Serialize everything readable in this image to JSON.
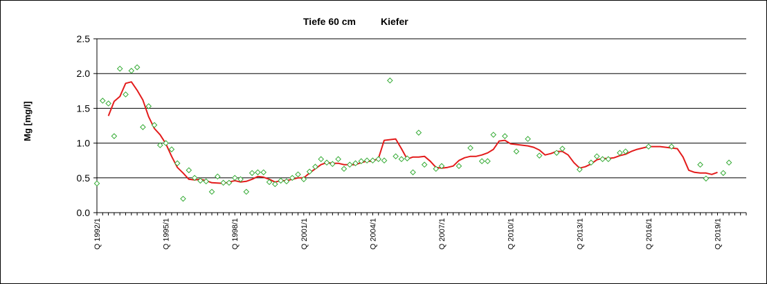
{
  "chart_data": {
    "type": "line",
    "title": "Tiefe  60 cm",
    "subtitle": "Kiefer",
    "ylabel": "Mg [mg/l]",
    "xlabel": "",
    "ylim": [
      0,
      2.5
    ],
    "yticks": [
      "0.0",
      "0.5",
      "1.0",
      "1.5",
      "2.0",
      "2.5"
    ],
    "xlim": [
      1992.0,
      2020.25
    ],
    "xtick_labels": [
      "Q 1992/1",
      "Q 1995/1",
      "Q 1998/1",
      "Q 2001/1",
      "Q 2004/1",
      "Q 2007/1",
      "Q 2010/1",
      "Q 2013/1",
      "Q 2016/1",
      "Q 2019/1"
    ],
    "xtick_values": [
      1992,
      1995,
      1998,
      2001,
      2004,
      2007,
      2010,
      2013,
      2016,
      2019
    ],
    "grid": "horizontal",
    "series": [
      {
        "kind": "scatter",
        "marker": "diamond",
        "color": "#33aa33",
        "points": [
          [
            1992.0,
            0.42
          ],
          [
            1992.25,
            1.61
          ],
          [
            1992.5,
            1.57
          ],
          [
            1992.75,
            1.1
          ],
          [
            1993.0,
            2.07
          ],
          [
            1993.25,
            1.7
          ],
          [
            1993.5,
            2.04
          ],
          [
            1993.75,
            2.09
          ],
          [
            1994.0,
            1.23
          ],
          [
            1994.25,
            1.53
          ],
          [
            1994.5,
            1.26
          ],
          [
            1994.75,
            0.97
          ],
          [
            1995.0,
            1.0
          ],
          [
            1995.25,
            0.91
          ],
          [
            1995.5,
            0.71
          ],
          [
            1995.75,
            0.2
          ],
          [
            1996.0,
            0.61
          ],
          [
            1996.25,
            0.5
          ],
          [
            1996.5,
            0.46
          ],
          [
            1996.75,
            0.45
          ],
          [
            1997.0,
            0.3
          ],
          [
            1997.25,
            0.52
          ],
          [
            1997.5,
            0.43
          ],
          [
            1997.75,
            0.43
          ],
          [
            1998.0,
            0.5
          ],
          [
            1998.25,
            0.48
          ],
          [
            1998.5,
            0.3
          ],
          [
            1998.75,
            0.57
          ],
          [
            1999.0,
            0.58
          ],
          [
            1999.25,
            0.58
          ],
          [
            1999.5,
            0.44
          ],
          [
            1999.75,
            0.41
          ],
          [
            2000.0,
            0.46
          ],
          [
            2000.25,
            0.45
          ],
          [
            2000.5,
            0.5
          ],
          [
            2000.75,
            0.55
          ],
          [
            2001.0,
            0.48
          ],
          [
            2001.25,
            0.59
          ],
          [
            2001.5,
            0.66
          ],
          [
            2001.75,
            0.77
          ],
          [
            2002.0,
            0.72
          ],
          [
            2002.25,
            0.7
          ],
          [
            2002.5,
            0.77
          ],
          [
            2002.75,
            0.63
          ],
          [
            2003.0,
            0.69
          ],
          [
            2003.25,
            0.71
          ],
          [
            2003.5,
            0.74
          ],
          [
            2003.75,
            0.75
          ],
          [
            2004.0,
            0.75
          ],
          [
            2004.25,
            0.77
          ],
          [
            2004.5,
            0.75
          ],
          [
            2004.75,
            1.9
          ],
          [
            2005.0,
            0.81
          ],
          [
            2005.25,
            0.77
          ],
          [
            2005.5,
            0.78
          ],
          [
            2005.75,
            0.58
          ],
          [
            2006.0,
            1.15
          ],
          [
            2006.25,
            0.69
          ],
          [
            2006.75,
            0.63
          ],
          [
            2007.0,
            0.67
          ],
          [
            2007.75,
            0.67
          ],
          [
            2008.25,
            0.93
          ],
          [
            2008.75,
            0.74
          ],
          [
            2009.0,
            0.74
          ],
          [
            2009.25,
            1.12
          ],
          [
            2009.75,
            1.1
          ],
          [
            2010.25,
            0.88
          ],
          [
            2010.75,
            1.06
          ],
          [
            2011.25,
            0.82
          ],
          [
            2012.0,
            0.86
          ],
          [
            2012.25,
            0.92
          ],
          [
            2013.0,
            0.62
          ],
          [
            2013.5,
            0.72
          ],
          [
            2013.75,
            0.81
          ],
          [
            2014.0,
            0.77
          ],
          [
            2014.25,
            0.77
          ],
          [
            2014.75,
            0.86
          ],
          [
            2015.0,
            0.88
          ],
          [
            2016.0,
            0.95
          ],
          [
            2017.0,
            0.95
          ],
          [
            2018.25,
            0.69
          ],
          [
            2018.5,
            0.49
          ],
          [
            2019.25,
            0.57
          ],
          [
            2019.5,
            0.72
          ]
        ]
      },
      {
        "kind": "line",
        "color": "#e31b1b",
        "points": [
          [
            1992.5,
            1.39
          ],
          [
            1992.75,
            1.6
          ],
          [
            1993.0,
            1.67
          ],
          [
            1993.25,
            1.86
          ],
          [
            1993.5,
            1.88
          ],
          [
            1993.75,
            1.76
          ],
          [
            1994.0,
            1.62
          ],
          [
            1994.25,
            1.38
          ],
          [
            1994.5,
            1.21
          ],
          [
            1994.75,
            1.12
          ],
          [
            1995.0,
            0.99
          ],
          [
            1995.25,
            0.81
          ],
          [
            1995.5,
            0.65
          ],
          [
            1995.75,
            0.57
          ],
          [
            1996.0,
            0.48
          ],
          [
            1996.25,
            0.47
          ],
          [
            1996.5,
            0.48
          ],
          [
            1996.75,
            0.46
          ],
          [
            1997.0,
            0.43
          ],
          [
            1997.5,
            0.42
          ],
          [
            1997.75,
            0.44
          ],
          [
            1998.0,
            0.46
          ],
          [
            1998.25,
            0.44
          ],
          [
            1998.5,
            0.45
          ],
          [
            1998.75,
            0.48
          ],
          [
            1999.0,
            0.52
          ],
          [
            1999.25,
            0.51
          ],
          [
            1999.5,
            0.48
          ],
          [
            1999.75,
            0.44
          ],
          [
            2000.0,
            0.46
          ],
          [
            2000.25,
            0.46
          ],
          [
            2000.5,
            0.48
          ],
          [
            2000.75,
            0.5
          ],
          [
            2001.0,
            0.5
          ],
          [
            2001.25,
            0.57
          ],
          [
            2001.5,
            0.63
          ],
          [
            2001.75,
            0.69
          ],
          [
            2002.0,
            0.72
          ],
          [
            2002.25,
            0.71
          ],
          [
            2002.5,
            0.71
          ],
          [
            2002.75,
            0.69
          ],
          [
            2003.25,
            0.69
          ],
          [
            2003.5,
            0.72
          ],
          [
            2003.75,
            0.74
          ],
          [
            2004.0,
            0.74
          ],
          [
            2004.25,
            0.78
          ],
          [
            2004.5,
            1.04
          ],
          [
            2004.75,
            1.05
          ],
          [
            2005.0,
            1.06
          ],
          [
            2005.25,
            0.92
          ],
          [
            2005.5,
            0.77
          ],
          [
            2005.75,
            0.8
          ],
          [
            2006.0,
            0.8
          ],
          [
            2006.25,
            0.81
          ],
          [
            2006.5,
            0.74
          ],
          [
            2006.75,
            0.65
          ],
          [
            2007.0,
            0.64
          ],
          [
            2007.25,
            0.65
          ],
          [
            2007.5,
            0.67
          ],
          [
            2007.75,
            0.75
          ],
          [
            2008.0,
            0.79
          ],
          [
            2008.25,
            0.81
          ],
          [
            2008.5,
            0.81
          ],
          [
            2008.75,
            0.83
          ],
          [
            2009.0,
            0.86
          ],
          [
            2009.25,
            0.91
          ],
          [
            2009.5,
            1.03
          ],
          [
            2009.75,
            1.04
          ],
          [
            2010.0,
            0.99
          ],
          [
            2010.25,
            0.98
          ],
          [
            2010.5,
            0.97
          ],
          [
            2010.75,
            0.96
          ],
          [
            2011.0,
            0.94
          ],
          [
            2011.25,
            0.9
          ],
          [
            2011.5,
            0.83
          ],
          [
            2011.75,
            0.85
          ],
          [
            2012.0,
            0.88
          ],
          [
            2012.25,
            0.88
          ],
          [
            2012.5,
            0.83
          ],
          [
            2012.75,
            0.72
          ],
          [
            2013.0,
            0.64
          ],
          [
            2013.25,
            0.66
          ],
          [
            2013.5,
            0.7
          ],
          [
            2013.75,
            0.76
          ],
          [
            2014.0,
            0.78
          ],
          [
            2014.25,
            0.78
          ],
          [
            2014.5,
            0.79
          ],
          [
            2014.75,
            0.82
          ],
          [
            2015.0,
            0.84
          ],
          [
            2015.25,
            0.88
          ],
          [
            2015.5,
            0.91
          ],
          [
            2015.75,
            0.93
          ],
          [
            2016.0,
            0.95
          ],
          [
            2016.5,
            0.95
          ],
          [
            2016.75,
            0.94
          ],
          [
            2017.0,
            0.93
          ],
          [
            2017.25,
            0.92
          ],
          [
            2017.5,
            0.8
          ],
          [
            2017.75,
            0.61
          ],
          [
            2018.0,
            0.58
          ],
          [
            2018.25,
            0.57
          ],
          [
            2018.5,
            0.57
          ],
          [
            2018.75,
            0.55
          ],
          [
            2019.0,
            0.58
          ]
        ]
      }
    ]
  }
}
